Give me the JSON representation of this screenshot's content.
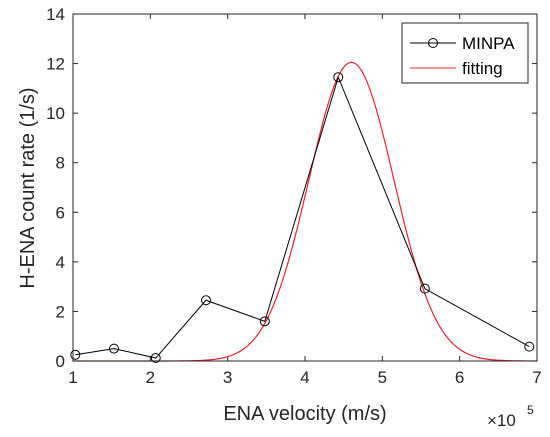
{
  "chart_data": {
    "type": "line",
    "xlabel": "ENA velocity (m/s)",
    "ylabel": "H-ENA count rate (1/s)",
    "x_exponent_label": "×10",
    "x_exponent_power": "5",
    "xlim": [
      1,
      7
    ],
    "ylim": [
      0,
      14
    ],
    "xticks": [
      1,
      2,
      3,
      4,
      5,
      6,
      7
    ],
    "yticks": [
      0,
      2,
      4,
      6,
      8,
      10,
      12,
      14
    ],
    "grid": false,
    "legend_position": "top-right",
    "series": [
      {
        "name": "MINPA",
        "color": "#000000",
        "marker": "circle",
        "x": [
          1.03,
          1.53,
          2.07,
          2.72,
          3.48,
          4.43,
          5.55,
          6.9
        ],
        "y": [
          0.25,
          0.5,
          0.12,
          2.45,
          1.6,
          11.45,
          2.92,
          0.58
        ]
      },
      {
        "name": "fitting",
        "color": "#e8242c",
        "marker": "none",
        "model": "gaussian",
        "peak_x": 4.6,
        "peak_y": 12.05,
        "sigma": 0.55
      }
    ]
  }
}
